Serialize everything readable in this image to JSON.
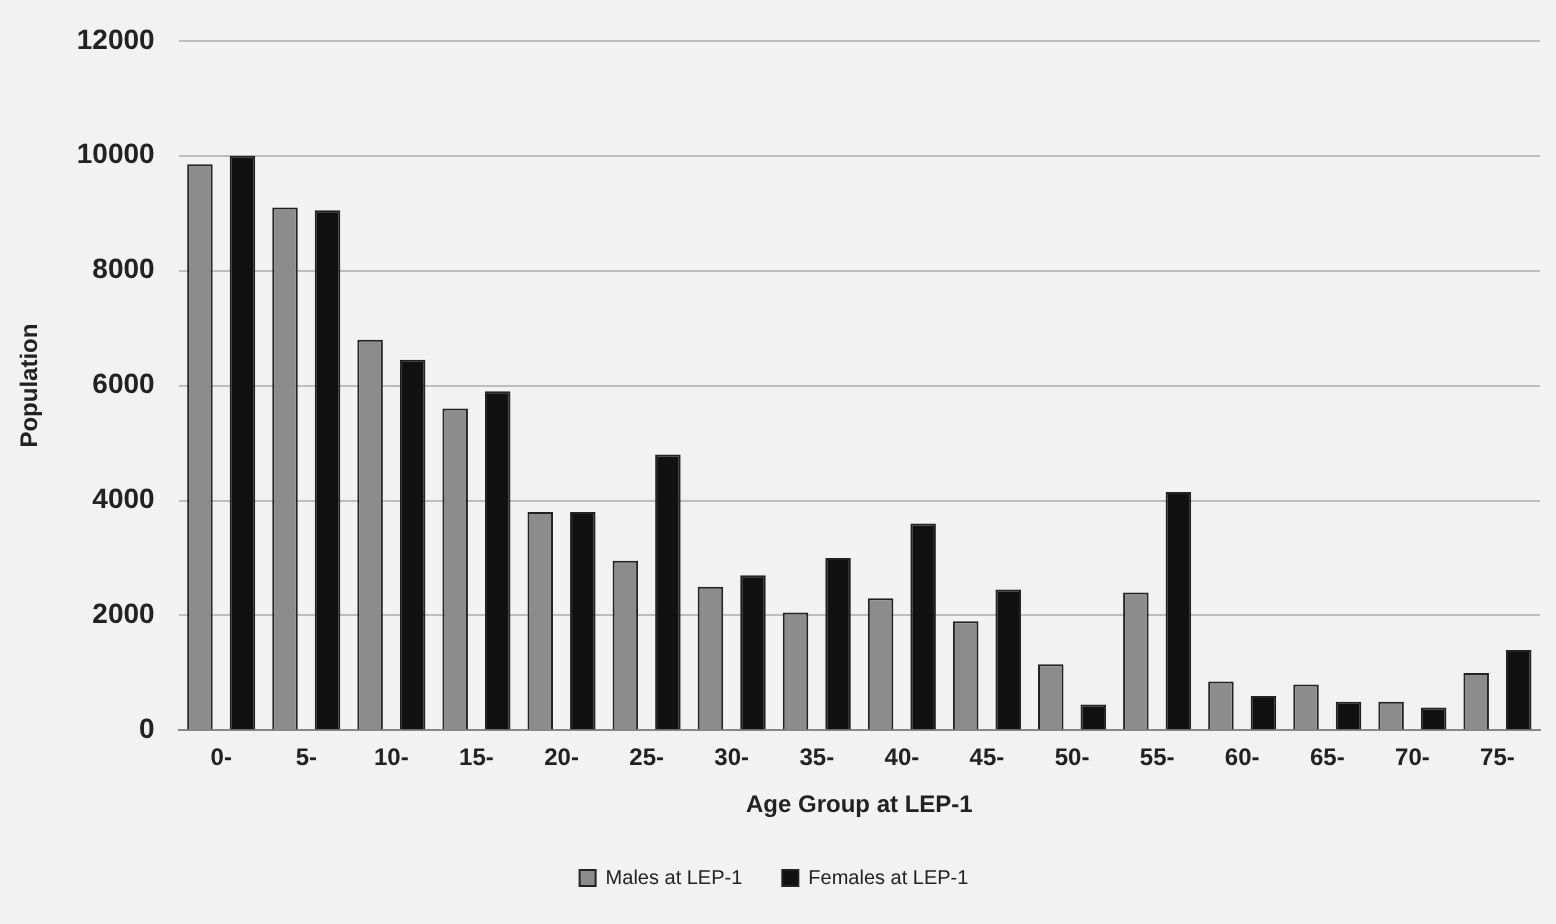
{
  "chart_data": {
    "type": "bar",
    "xlabel": "Age Group at LEP-1",
    "ylabel": "Population",
    "categories": [
      "0-",
      "5-",
      "10-",
      "15-",
      "20-",
      "25-",
      "30-",
      "35-",
      "40-",
      "45-",
      "50-",
      "55-",
      "60-",
      "65-",
      "70-",
      "75-"
    ],
    "series": [
      {
        "name": "Males at LEP-1",
        "color": "#8c8c8c",
        "values": [
          9850,
          9100,
          6800,
          5600,
          3800,
          2950,
          2500,
          2050,
          2300,
          1900,
          1150,
          2400,
          850,
          800,
          500,
          1000
        ]
      },
      {
        "name": "Females at LEP-1",
        "color": "#111111",
        "values": [
          10000,
          9050,
          6450,
          5900,
          3800,
          4800,
          2700,
          3000,
          3600,
          2450,
          450,
          4150,
          600,
          500,
          400,
          1400
        ]
      }
    ],
    "ylim": [
      0,
      12000
    ],
    "yticks": [
      0,
      2000,
      4000,
      6000,
      8000,
      10000,
      12000
    ],
    "grid": "y",
    "legend": "bottom"
  }
}
